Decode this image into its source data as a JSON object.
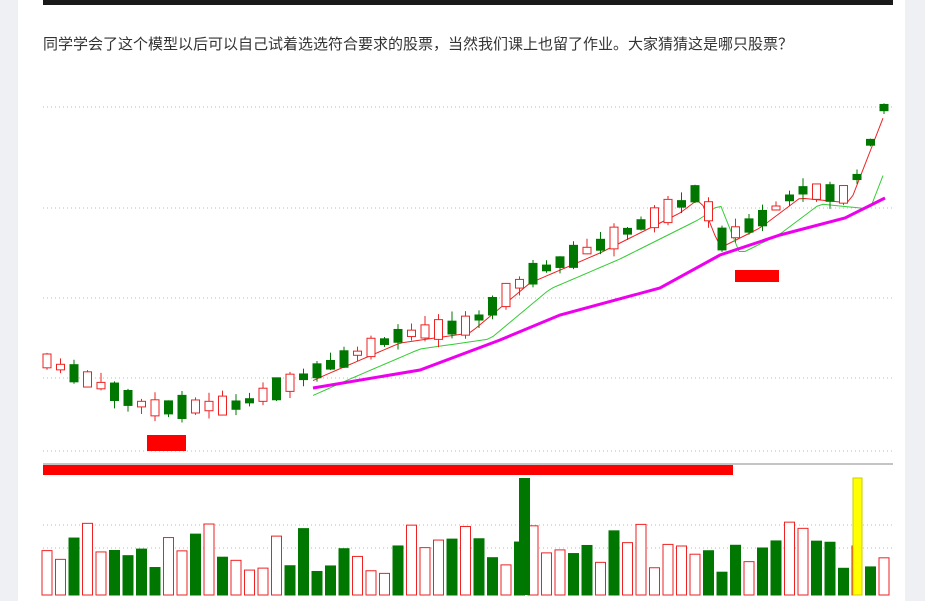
{
  "article": {
    "text": "同学学会了这个模型以后可以自己试着选选符合要求的股票，当然我们课上也留了作业。大家猜猜这是哪只股票？"
  }
}
